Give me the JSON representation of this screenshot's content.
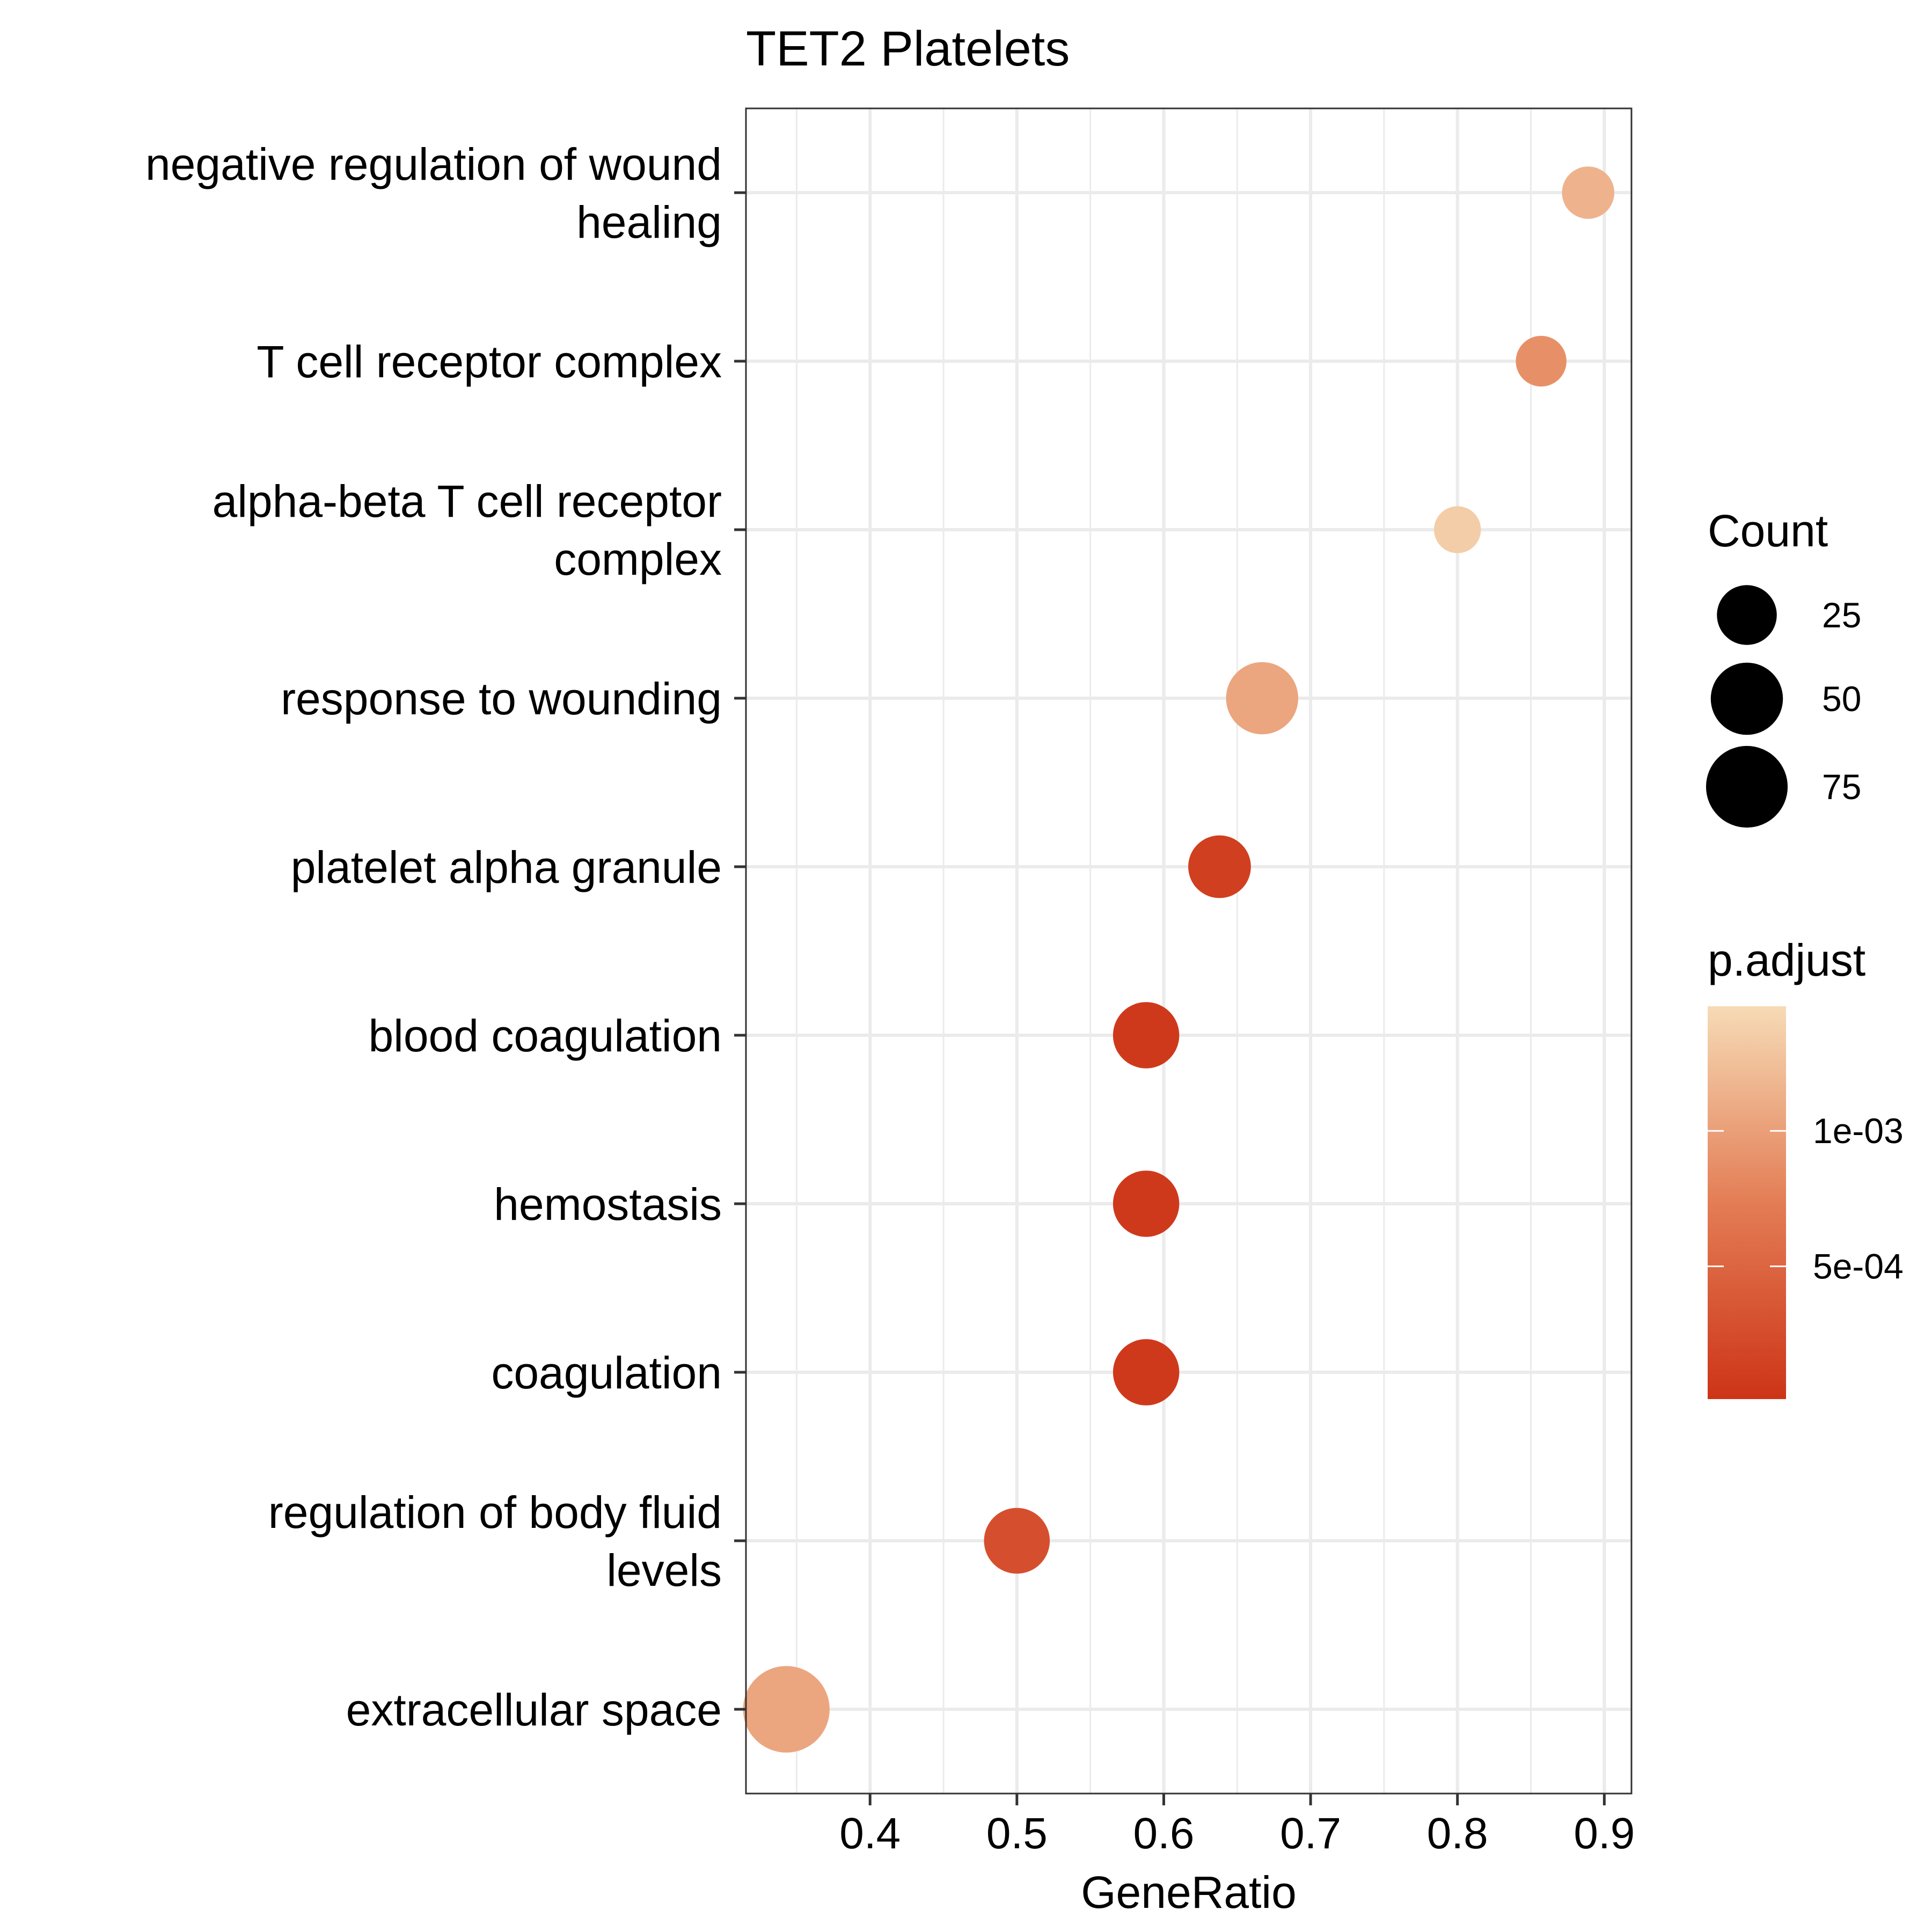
{
  "chart_data": {
    "type": "scatter",
    "title": "TET2 Platelets",
    "xlabel": "GeneRatio",
    "ylabel": "",
    "xlim": [
      0.3155,
      0.9185
    ],
    "x_ticks": [
      0.4,
      0.5,
      0.6,
      0.7,
      0.8,
      0.9
    ],
    "x_tick_labels": [
      "0.4",
      "0.5",
      "0.6",
      "0.7",
      "0.8",
      "0.9"
    ],
    "grid": true,
    "legend_position": "right",
    "categories": [
      [
        "negative regulation of wound",
        "healing"
      ],
      [
        "T cell receptor complex"
      ],
      [
        "alpha-beta T cell receptor",
        "complex"
      ],
      [
        "response to wounding"
      ],
      [
        "platelet alpha granule"
      ],
      [
        "blood coagulation"
      ],
      [
        "hemostasis"
      ],
      [
        "coagulation"
      ],
      [
        "regulation of body fluid",
        "levels"
      ],
      [
        "extracellular space"
      ]
    ],
    "points": [
      {
        "x": 0.889,
        "count": 14,
        "p_adjust": 0.00115
      },
      {
        "x": 0.857,
        "count": 12,
        "p_adjust": 0.00088
      },
      {
        "x": 0.8,
        "count": 8,
        "p_adjust": 0.00135
      },
      {
        "x": 0.667,
        "count": 50,
        "p_adjust": 0.00105
      },
      {
        "x": 0.638,
        "count": 30,
        "p_adjust": 0.00012
      },
      {
        "x": 0.588,
        "count": 37,
        "p_adjust": 6e-05
      },
      {
        "x": 0.588,
        "count": 37,
        "p_adjust": 6e-05
      },
      {
        "x": 0.588,
        "count": 37,
        "p_adjust": 6e-05
      },
      {
        "x": 0.5,
        "count": 36,
        "p_adjust": 0.00028
      },
      {
        "x": 0.343,
        "count": 90,
        "p_adjust": 0.00105
      }
    ],
    "size_legend": {
      "title": "Count",
      "breaks": [
        25,
        50,
        75
      ],
      "labels": [
        "25",
        "50",
        "75"
      ]
    },
    "color_legend": {
      "title": "p.adjust",
      "min": 1e-05,
      "max": 0.00146,
      "breaks": [
        0.001,
        0.0005
      ],
      "labels": [
        "1e-03",
        "5e-04"
      ],
      "low_color": "#cd3417",
      "high_color": "#f6dbb6"
    },
    "colors": {
      "grid": "#ebebeb",
      "border": "#333333",
      "text": "#000000"
    }
  }
}
